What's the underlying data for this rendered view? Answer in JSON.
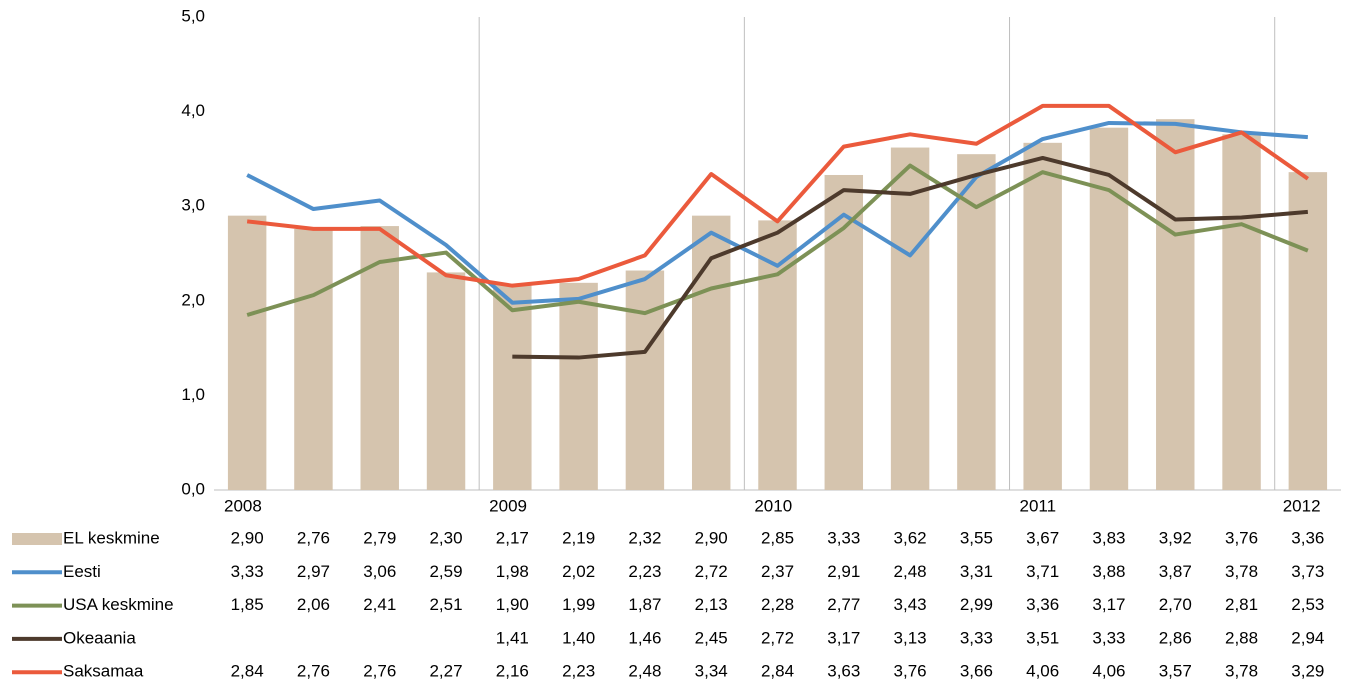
{
  "chart_data": {
    "type": "combo",
    "categories": [
      "2008",
      null,
      null,
      null,
      "2009",
      null,
      null,
      null,
      "2010",
      null,
      null,
      null,
      "2011",
      null,
      null,
      null,
      "2012"
    ],
    "ylim": [
      0,
      5
    ],
    "yticks": [
      {
        "value": 0,
        "label": "0,0"
      },
      {
        "value": 1,
        "label": "1,0"
      },
      {
        "value": 2,
        "label": "2,0"
      },
      {
        "value": 3,
        "label": "3,0"
      },
      {
        "value": 4,
        "label": "4,0"
      },
      {
        "value": 5,
        "label": "5,0"
      }
    ],
    "series": [
      {
        "name": "EL keskmine",
        "type": "bar",
        "color": "#d5c4ae",
        "values": [
          2.9,
          2.76,
          2.79,
          2.3,
          2.17,
          2.19,
          2.32,
          2.9,
          2.85,
          3.33,
          3.62,
          3.55,
          3.67,
          3.83,
          3.92,
          3.76,
          3.36
        ],
        "value_labels": [
          "2,90",
          "2,76",
          "2,79",
          "2,30",
          "2,17",
          "2,19",
          "2,32",
          "2,90",
          "2,85",
          "3,33",
          "3,62",
          "3,55",
          "3,67",
          "3,83",
          "3,92",
          "3,76",
          "3,36"
        ]
      },
      {
        "name": "Eesti",
        "type": "line",
        "color": "#4f8fcb",
        "values": [
          3.33,
          2.97,
          3.06,
          2.59,
          1.98,
          2.02,
          2.23,
          2.72,
          2.37,
          2.91,
          2.48,
          3.31,
          3.71,
          3.88,
          3.87,
          3.78,
          3.73
        ],
        "value_labels": [
          "3,33",
          "2,97",
          "3,06",
          "2,59",
          "1,98",
          "2,02",
          "2,23",
          "2,72",
          "2,37",
          "2,91",
          "2,48",
          "3,31",
          "3,71",
          "3,88",
          "3,87",
          "3,78",
          "3,73"
        ]
      },
      {
        "name": "USA keskmine",
        "type": "line",
        "color": "#7d9156",
        "values": [
          1.85,
          2.06,
          2.41,
          2.51,
          1.9,
          1.99,
          1.87,
          2.13,
          2.28,
          2.77,
          3.43,
          2.99,
          3.36,
          3.17,
          2.7,
          2.81,
          2.53
        ],
        "value_labels": [
          "1,85",
          "2,06",
          "2,41",
          "2,51",
          "1,90",
          "1,99",
          "1,87",
          "2,13",
          "2,28",
          "2,77",
          "3,43",
          "2,99",
          "3,36",
          "3,17",
          "2,70",
          "2,81",
          "2,53"
        ]
      },
      {
        "name": "Okeaania",
        "type": "line",
        "color": "#4d3a2c",
        "values": [
          null,
          null,
          null,
          null,
          1.41,
          1.4,
          1.46,
          2.45,
          2.72,
          3.17,
          3.13,
          3.33,
          3.51,
          3.33,
          2.86,
          2.88,
          2.94
        ],
        "value_labels": [
          null,
          null,
          null,
          null,
          "1,41",
          "1,40",
          "1,46",
          "2,45",
          "2,72",
          "3,17",
          "3,13",
          "3,33",
          "3,51",
          "3,33",
          "2,86",
          "2,88",
          "2,94"
        ]
      },
      {
        "name": "Saksamaa",
        "type": "line",
        "color": "#eb5a3c",
        "values": [
          2.84,
          2.76,
          2.76,
          2.27,
          2.16,
          2.23,
          2.48,
          3.34,
          2.84,
          3.63,
          3.76,
          3.66,
          4.06,
          4.06,
          3.57,
          3.78,
          3.29
        ],
        "value_labels": [
          "2,84",
          "2,76",
          "2,76",
          "2,27",
          "2,16",
          "2,23",
          "2,48",
          "3,34",
          "2,84",
          "3,63",
          "3,76",
          "3,66",
          "4,06",
          "4,06",
          "3,57",
          "3,78",
          "3,29"
        ]
      }
    ]
  }
}
